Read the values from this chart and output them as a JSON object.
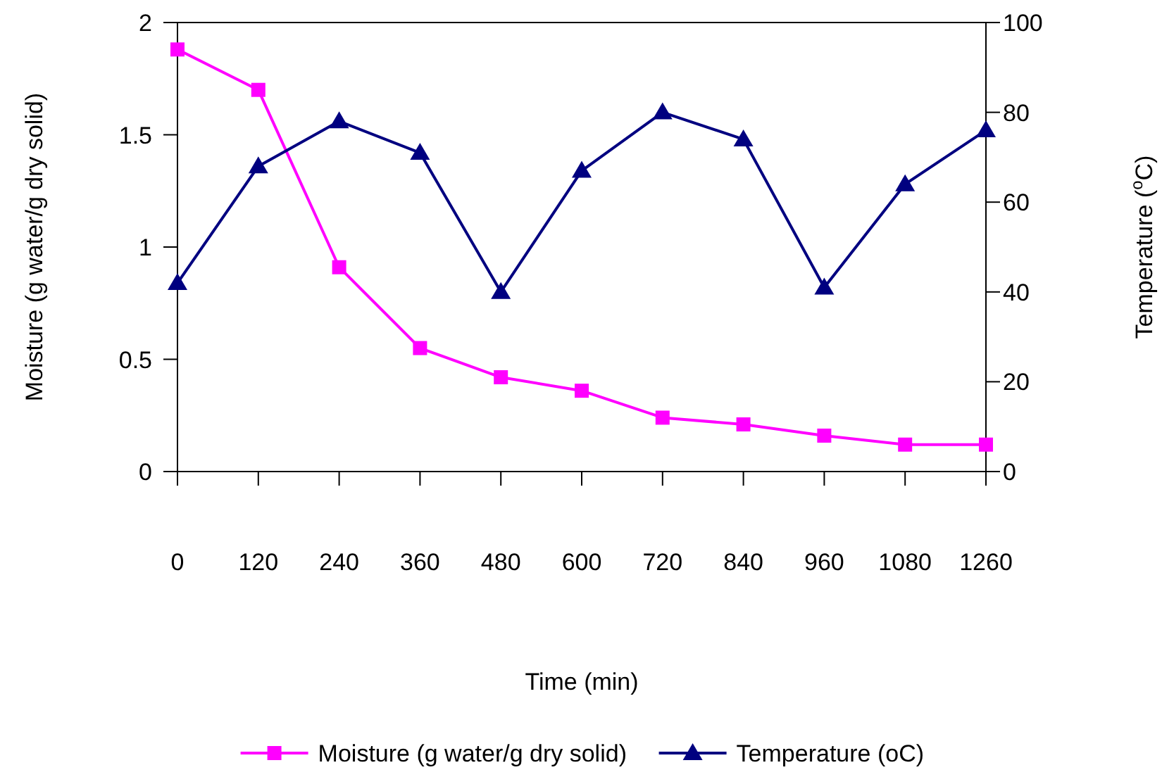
{
  "chart_data": {
    "type": "line",
    "xlabel": "Time (min)",
    "ylabel": "Moisture (g water/g dry solid)",
    "y2label": "Temperature ($^{o}$C)",
    "categories": [
      "0",
      "120",
      "240",
      "360",
      "480",
      "600",
      "720",
      "840",
      "960",
      "1080",
      "1260"
    ],
    "series": [
      {
        "name": "Moisture (g water/g dry solid)",
        "color": "#ff00ff",
        "marker": "square",
        "values": [
          1.88,
          1.7,
          0.91,
          0.55,
          0.42,
          0.36,
          0.24,
          0.21,
          0.16,
          0.12,
          0.12
        ]
      },
      {
        "name": "Temperature (oC)",
        "color": "#000080",
        "marker": "triangle",
        "axis": "y2",
        "values": [
          42,
          68,
          78,
          71,
          40,
          67,
          80,
          74,
          41,
          64,
          76
        ]
      }
    ],
    "ylim": [
      0,
      2
    ],
    "yticks": [
      0,
      0.5,
      1,
      1.5,
      2
    ],
    "y2lim": [
      0,
      100
    ],
    "y2ticks": [
      0,
      20,
      40,
      60,
      80,
      100
    ],
    "grid": false,
    "legend": "bottom"
  }
}
